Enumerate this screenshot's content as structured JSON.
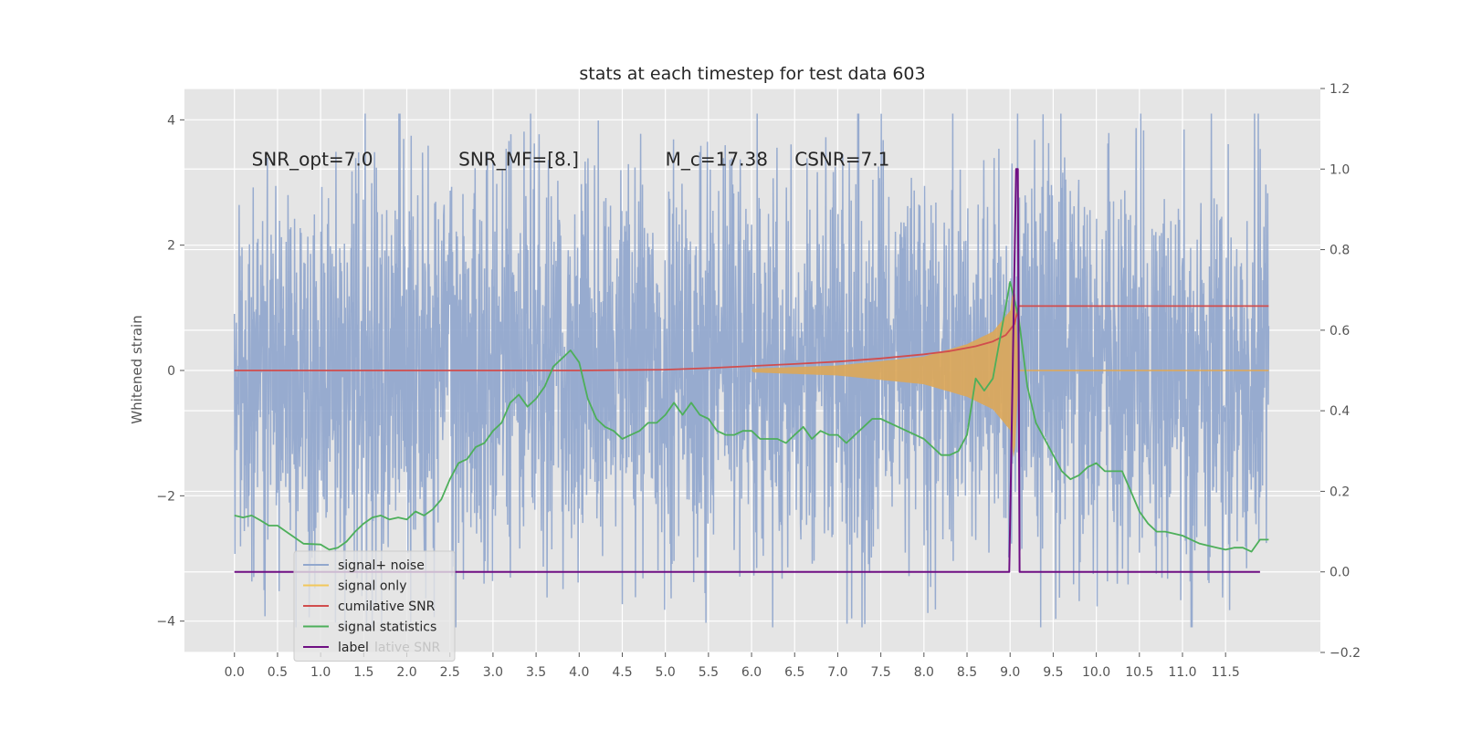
{
  "chart_data": {
    "type": "line",
    "title": "stats at each timestep for test data 603",
    "ylabel": "Whitened strain",
    "xlabel": "",
    "xlim": [
      -0.58,
      12.6
    ],
    "ylim": [
      -4.5,
      4.5
    ],
    "y2lim": [
      -0.2,
      1.2
    ],
    "grid": true,
    "legend_position": "lower-left",
    "x_ticks": [
      0.0,
      0.5,
      1.0,
      1.5,
      2.0,
      2.5,
      3.0,
      3.5,
      4.0,
      4.5,
      5.0,
      5.5,
      6.0,
      6.5,
      7.0,
      7.5,
      8.0,
      8.5,
      9.0,
      9.5,
      10.0,
      10.5,
      11.0,
      11.5
    ],
    "x_tick_labels": [
      "0.0",
      "0.5",
      "1.0",
      "1.5",
      "2.0",
      "2.5",
      "3.0",
      "3.5",
      "4.0",
      "4.5",
      "5.0",
      "5.5",
      "6.0",
      "6.5",
      "7.0",
      "7.5",
      "8.0",
      "8.5",
      "9.0",
      "9.5",
      "10.0",
      "10.5",
      "11.0",
      "11.5"
    ],
    "y_ticks": [
      4,
      2,
      0,
      -2,
      -4
    ],
    "y_tick_labels": [
      "4",
      "2",
      "0",
      "−2",
      "−4"
    ],
    "y2_ticks": [
      1.2,
      1.0,
      0.8,
      0.6,
      0.4,
      0.2,
      0.0,
      -0.2
    ],
    "y2_tick_labels": [
      "1.2",
      "1.0",
      "0.8",
      "0.6",
      "0.4",
      "0.2",
      "0.0",
      "−0.2"
    ],
    "annotations": [
      {
        "text": "SNR_opt=7.0",
        "x": 0.2,
        "y": 3.3
      },
      {
        "text": "SNR_MF=[8.]",
        "x": 2.6,
        "y": 3.3
      },
      {
        "text": "M_c=17.38",
        "x": 5.0,
        "y": 3.3
      },
      {
        "text": "CSNR=7.1",
        "x": 6.5,
        "y": 3.3
      }
    ],
    "legend": [
      {
        "name": "signal+ noise",
        "color": "#92a8cd"
      },
      {
        "name": "signal only",
        "color": "#f2c85a"
      },
      {
        "name": "cumilative SNR",
        "color": "#d14d4d"
      },
      {
        "name": "signal statistics",
        "color": "#4daf5a"
      },
      {
        "name": "label",
        "color": "#6f0f83"
      }
    ],
    "legend_overlap_text": "lative SNR",
    "series": [
      {
        "name": "signal+ noise",
        "axis": "left",
        "color": "#92a8cd",
        "x_range": [
          0.0,
          12.0
        ],
        "amplitude_typical": 2.2,
        "amplitude_max": 4.1
      },
      {
        "name": "signal only",
        "axis": "left",
        "color": "#e0a856",
        "x": [
          6.0,
          7.0,
          8.0,
          8.5,
          8.8,
          9.0,
          9.05,
          9.1,
          12.0
        ],
        "envelope": [
          0.03,
          0.08,
          0.22,
          0.42,
          0.62,
          0.95,
          1.5,
          0.0,
          0.0
        ]
      },
      {
        "name": "cumilative SNR",
        "axis": "right",
        "color": "#d14d4d",
        "x": [
          0.0,
          2.0,
          4.0,
          5.0,
          5.5,
          6.0,
          6.5,
          7.0,
          7.5,
          8.0,
          8.3,
          8.6,
          8.8,
          8.95,
          9.05,
          9.1,
          9.2,
          12.0
        ],
        "values": [
          0.5,
          0.5,
          0.5,
          0.502,
          0.506,
          0.511,
          0.516,
          0.522,
          0.53,
          0.54,
          0.548,
          0.56,
          0.572,
          0.588,
          0.615,
          0.66,
          0.66,
          0.66
        ]
      },
      {
        "name": "signal statistics",
        "axis": "right",
        "color": "#4daf5a",
        "x": [
          0.0,
          0.1,
          0.2,
          0.3,
          0.4,
          0.5,
          0.6,
          0.8,
          1.0,
          1.1,
          1.2,
          1.3,
          1.4,
          1.5,
          1.6,
          1.7,
          1.8,
          1.9,
          2.0,
          2.1,
          2.2,
          2.3,
          2.4,
          2.5,
          2.6,
          2.7,
          2.8,
          2.9,
          3.0,
          3.1,
          3.2,
          3.3,
          3.4,
          3.5,
          3.6,
          3.7,
          3.8,
          3.9,
          4.0,
          4.1,
          4.2,
          4.3,
          4.4,
          4.5,
          4.6,
          4.7,
          4.8,
          4.9,
          5.0,
          5.1,
          5.2,
          5.3,
          5.4,
          5.5,
          5.6,
          5.7,
          5.8,
          5.9,
          6.0,
          6.1,
          6.2,
          6.3,
          6.4,
          6.5,
          6.6,
          6.7,
          6.8,
          6.9,
          7.0,
          7.1,
          7.2,
          7.3,
          7.4,
          7.5,
          7.6,
          7.7,
          7.8,
          7.9,
          8.0,
          8.1,
          8.2,
          8.3,
          8.4,
          8.5,
          8.6,
          8.7,
          8.8,
          8.9,
          9.0,
          9.1,
          9.2,
          9.3,
          9.4,
          9.5,
          9.6,
          9.7,
          9.8,
          9.9,
          10.0,
          10.1,
          10.2,
          10.3,
          10.4,
          10.5,
          10.6,
          10.7,
          10.8,
          10.9,
          11.0,
          11.1,
          11.2,
          11.3,
          11.4,
          11.5,
          11.6,
          11.7,
          11.8,
          11.9,
          12.0
        ],
        "values": [
          0.14,
          0.135,
          0.14,
          0.128,
          0.115,
          0.115,
          0.1,
          0.07,
          0.068,
          0.055,
          0.06,
          0.075,
          0.1,
          0.12,
          0.135,
          0.14,
          0.13,
          0.135,
          0.13,
          0.15,
          0.14,
          0.155,
          0.18,
          0.23,
          0.27,
          0.28,
          0.31,
          0.32,
          0.35,
          0.37,
          0.42,
          0.44,
          0.41,
          0.43,
          0.46,
          0.51,
          0.53,
          0.55,
          0.52,
          0.43,
          0.38,
          0.36,
          0.35,
          0.33,
          0.34,
          0.35,
          0.37,
          0.37,
          0.39,
          0.42,
          0.39,
          0.42,
          0.39,
          0.38,
          0.35,
          0.34,
          0.34,
          0.35,
          0.35,
          0.33,
          0.33,
          0.33,
          0.32,
          0.34,
          0.36,
          0.33,
          0.35,
          0.34,
          0.34,
          0.32,
          0.34,
          0.36,
          0.38,
          0.38,
          0.37,
          0.36,
          0.35,
          0.34,
          0.33,
          0.31,
          0.29,
          0.29,
          0.3,
          0.34,
          0.48,
          0.45,
          0.48,
          0.6,
          0.72,
          0.63,
          0.46,
          0.37,
          0.33,
          0.29,
          0.25,
          0.23,
          0.24,
          0.26,
          0.27,
          0.25,
          0.25,
          0.25,
          0.2,
          0.15,
          0.12,
          0.1,
          0.1,
          0.095,
          0.09,
          0.08,
          0.07,
          0.065,
          0.06,
          0.055,
          0.06,
          0.06,
          0.05,
          0.08,
          0.08
        ]
      },
      {
        "name": "label",
        "axis": "right",
        "color": "#6f0f83",
        "x": [
          0.0,
          8.99,
          9.07,
          9.09,
          9.11,
          11.9
        ],
        "values": [
          0.0,
          0.0,
          1.0,
          1.0,
          0.0,
          0.0
        ]
      }
    ]
  }
}
